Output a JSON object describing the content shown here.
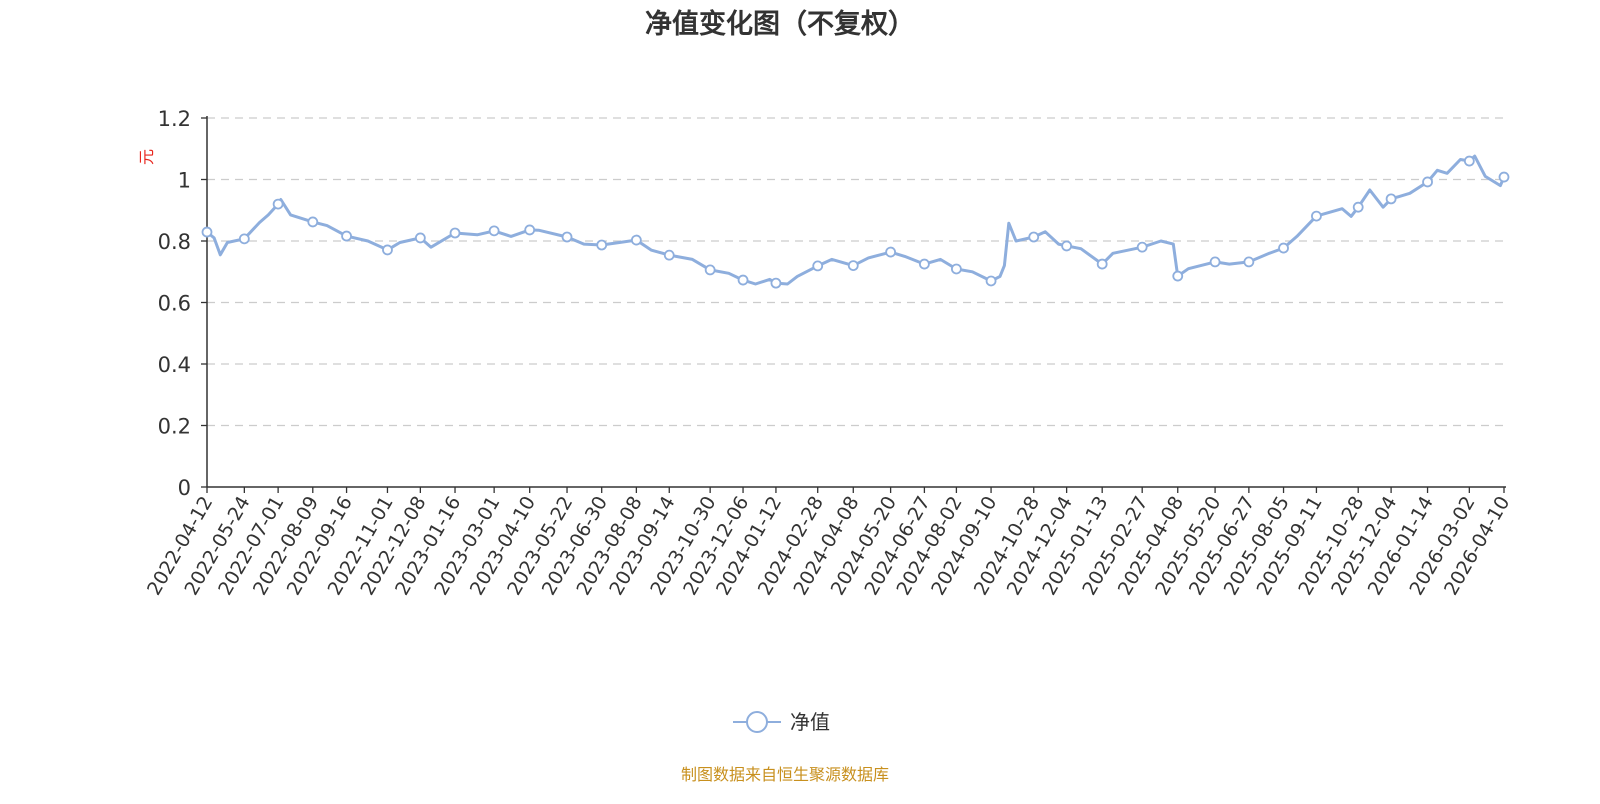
{
  "chart_data": {
    "type": "line",
    "title": "净值变化图（不复权）",
    "ylabel": "元",
    "xlabel": "",
    "ylim": [
      0,
      1.2
    ],
    "yticks": [
      0,
      0.2,
      0.4,
      0.6,
      0.8,
      1,
      1.2
    ],
    "grid": true,
    "legend_position": "bottom",
    "xticks": [
      "2022-04-12",
      "2022-05-24",
      "2022-07-01",
      "2022-08-09",
      "2022-09-16",
      "2022-11-01",
      "2022-12-08",
      "2023-01-16",
      "2023-03-01",
      "2023-04-10",
      "2023-05-22",
      "2023-06-30",
      "2023-08-08",
      "2023-09-14",
      "2023-10-30",
      "2023-12-06",
      "2024-01-12",
      "2024-02-28",
      "2024-04-08",
      "2024-05-20",
      "2024-06-27",
      "2024-08-02",
      "2024-09-10",
      "2024-10-28",
      "2024-12-04",
      "2025-01-13",
      "2025-02-27",
      "2025-04-08",
      "2025-05-20",
      "2025-06-27",
      "2025-08-05",
      "2025-09-11",
      "2025-10-28",
      "2025-12-04",
      "2026-01-14",
      "2026-03-02",
      "2026-04-10"
    ],
    "series": [
      {
        "name": "净值",
        "color": "#8eaedd",
        "points": [
          [
            "2022-04-12",
            0.829
          ],
          [
            "2022-04-20",
            0.81
          ],
          [
            "2022-04-27",
            0.755
          ],
          [
            "2022-05-05",
            0.795
          ],
          [
            "2022-05-24",
            0.807
          ],
          [
            "2022-06-10",
            0.86
          ],
          [
            "2022-06-20",
            0.885
          ],
          [
            "2022-07-01",
            0.92
          ],
          [
            "2022-07-04",
            0.935
          ],
          [
            "2022-07-15",
            0.885
          ],
          [
            "2022-08-09",
            0.862
          ],
          [
            "2022-08-25",
            0.85
          ],
          [
            "2022-09-16",
            0.816
          ],
          [
            "2022-10-10",
            0.8
          ],
          [
            "2022-11-01",
            0.771
          ],
          [
            "2022-11-15",
            0.795
          ],
          [
            "2022-12-08",
            0.81
          ],
          [
            "2022-12-20",
            0.78
          ],
          [
            "2023-01-16",
            0.826
          ],
          [
            "2023-02-10",
            0.82
          ],
          [
            "2023-03-01",
            0.833
          ],
          [
            "2023-03-20",
            0.815
          ],
          [
            "2023-04-10",
            0.836
          ],
          [
            "2023-04-20",
            0.835
          ],
          [
            "2023-05-22",
            0.813
          ],
          [
            "2023-06-10",
            0.79
          ],
          [
            "2023-06-30",
            0.787
          ],
          [
            "2023-07-20",
            0.795
          ],
          [
            "2023-08-08",
            0.803
          ],
          [
            "2023-08-25",
            0.77
          ],
          [
            "2023-09-14",
            0.754
          ],
          [
            "2023-10-10",
            0.74
          ],
          [
            "2023-10-30",
            0.706
          ],
          [
            "2023-11-20",
            0.695
          ],
          [
            "2023-12-06",
            0.673
          ],
          [
            "2023-12-20",
            0.66
          ],
          [
            "2024-01-05",
            0.675
          ],
          [
            "2024-01-12",
            0.663
          ],
          [
            "2024-01-25",
            0.66
          ],
          [
            "2024-02-05",
            0.685
          ],
          [
            "2024-02-28",
            0.719
          ],
          [
            "2024-03-15",
            0.74
          ],
          [
            "2024-04-08",
            0.72
          ],
          [
            "2024-04-25",
            0.745
          ],
          [
            "2024-05-20",
            0.764
          ],
          [
            "2024-06-05",
            0.75
          ],
          [
            "2024-06-27",
            0.725
          ],
          [
            "2024-07-15",
            0.74
          ],
          [
            "2024-08-02",
            0.709
          ],
          [
            "2024-08-20",
            0.7
          ],
          [
            "2024-09-10",
            0.67
          ],
          [
            "2024-09-20",
            0.685
          ],
          [
            "2024-09-25",
            0.72
          ],
          [
            "2024-09-30",
            0.858
          ],
          [
            "2024-10-08",
            0.8
          ],
          [
            "2024-10-28",
            0.813
          ],
          [
            "2024-11-10",
            0.83
          ],
          [
            "2024-11-25",
            0.79
          ],
          [
            "2024-12-04",
            0.784
          ],
          [
            "2024-12-20",
            0.775
          ],
          [
            "2025-01-13",
            0.725
          ],
          [
            "2025-01-25",
            0.76
          ],
          [
            "2025-02-27",
            0.78
          ],
          [
            "2025-03-20",
            0.8
          ],
          [
            "2025-04-03",
            0.79
          ],
          [
            "2025-04-08",
            0.686
          ],
          [
            "2025-04-20",
            0.71
          ],
          [
            "2025-05-20",
            0.732
          ],
          [
            "2025-06-05",
            0.725
          ],
          [
            "2025-06-27",
            0.732
          ],
          [
            "2025-07-20",
            0.76
          ],
          [
            "2025-08-05",
            0.777
          ],
          [
            "2025-08-20",
            0.815
          ],
          [
            "2025-09-11",
            0.881
          ],
          [
            "2025-10-10",
            0.905
          ],
          [
            "2025-10-20",
            0.88
          ],
          [
            "2025-10-28",
            0.91
          ],
          [
            "2025-11-10",
            0.966
          ],
          [
            "2025-11-25",
            0.91
          ],
          [
            "2025-12-04",
            0.937
          ],
          [
            "2025-12-25",
            0.955
          ],
          [
            "2026-01-14",
            0.992
          ],
          [
            "2026-01-25",
            1.03
          ],
          [
            "2026-02-05",
            1.02
          ],
          [
            "2026-02-20",
            1.065
          ],
          [
            "2026-03-02",
            1.06
          ],
          [
            "2026-03-08",
            1.076
          ],
          [
            "2026-03-20",
            1.01
          ],
          [
            "2026-04-06",
            0.98
          ],
          [
            "2026-04-10",
            1.008
          ]
        ]
      }
    ]
  },
  "legend": {
    "label": "净值"
  },
  "source": "制图数据来自恒生聚源数据库",
  "colors": {
    "unit": "#e8261e",
    "source": "#c8901e",
    "axis": "#333333",
    "grid": "#cccccc"
  }
}
